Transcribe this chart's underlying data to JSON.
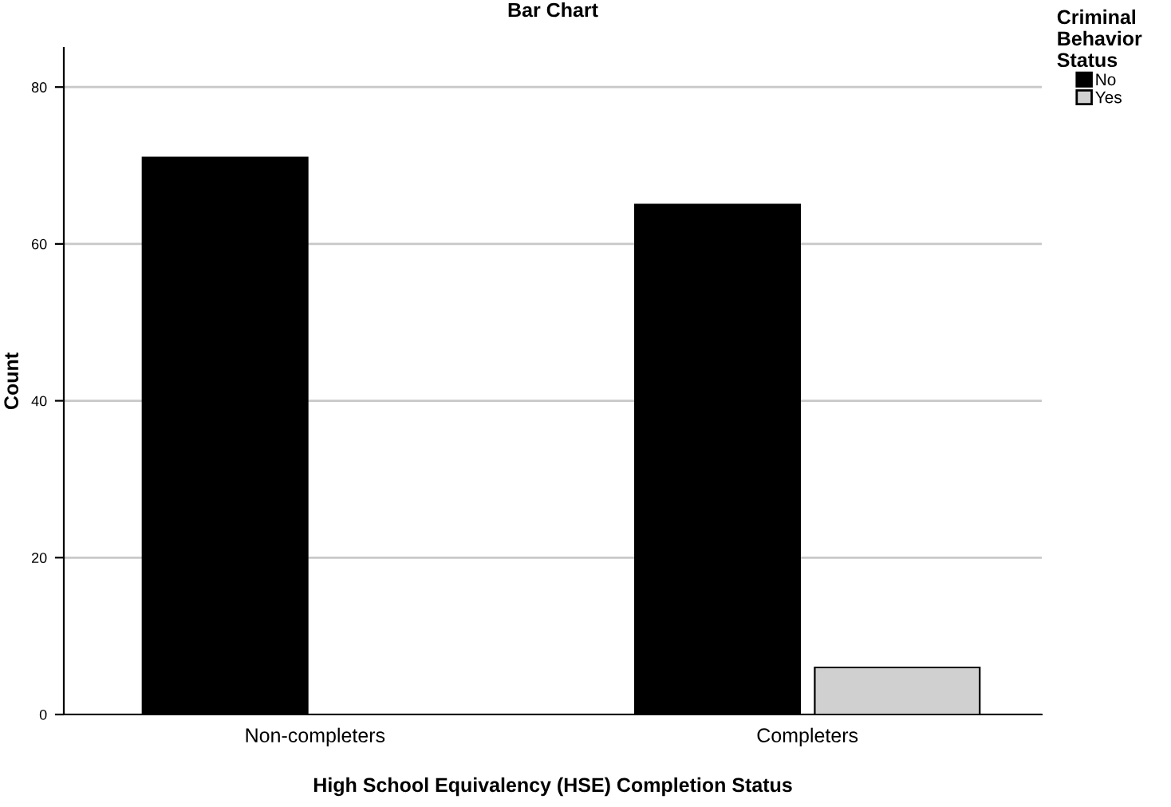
{
  "chart_data": {
    "type": "bar",
    "title": "Bar Chart",
    "xlabel": "High School Equivalency (HSE) Completion Status",
    "ylabel": "Count",
    "legend_title": "Criminal\nBehavior\nStatus",
    "categories": [
      "Non-completers",
      "Completers"
    ],
    "series": [
      {
        "name": "No",
        "color": "#000000",
        "values": [
          71,
          65
        ]
      },
      {
        "name": "Yes",
        "color": "#d0d0d0",
        "values": [
          null,
          6
        ]
      }
    ],
    "ylim": [
      0,
      85
    ],
    "yticks": [
      0,
      20,
      40,
      60,
      80
    ],
    "grid": "y",
    "legend": "top right"
  }
}
